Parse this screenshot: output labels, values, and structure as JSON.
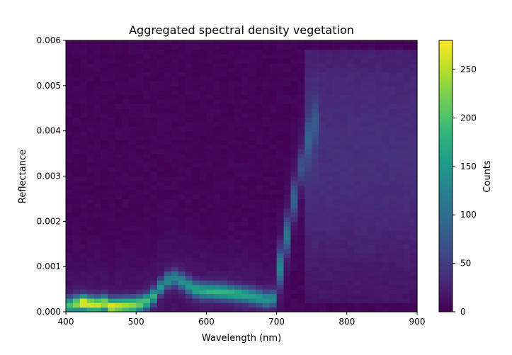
{
  "chart_data": {
    "type": "heatmap",
    "title": "Aggregated spectral density vegetation",
    "xlabel": "Wavelength (nm)",
    "ylabel": "Reflectance",
    "xlim": [
      400,
      900
    ],
    "ylim": [
      0,
      0.006
    ],
    "x_ticks": [
      400,
      500,
      600,
      700,
      800,
      900
    ],
    "y_ticks": [
      0.0,
      0.001,
      0.002,
      0.003,
      0.004,
      0.005,
      0.006
    ],
    "x_tick_labels": [
      "400",
      "500",
      "600",
      "700",
      "800",
      "900"
    ],
    "y_tick_labels": [
      "0.000",
      "0.001",
      "0.002",
      "0.003",
      "0.004",
      "0.005",
      "0.006"
    ],
    "x_bin_width_nm": 10,
    "y_bin_height": 0.0001,
    "colormap": "viridis",
    "colorbar": {
      "label": "Counts",
      "range": [
        0,
        280
      ],
      "ticks": [
        0,
        50,
        100,
        150,
        200,
        250
      ],
      "tick_labels": [
        "0",
        "50",
        "100",
        "150",
        "200",
        "250"
      ]
    },
    "ridge": {
      "wavelengths": [
        400,
        410,
        420,
        430,
        440,
        450,
        460,
        470,
        480,
        490,
        500,
        510,
        520,
        530,
        540,
        550,
        560,
        570,
        580,
        590,
        600,
        610,
        620,
        630,
        640,
        650,
        660,
        670,
        680,
        690,
        700,
        710,
        720,
        730,
        740,
        750
      ],
      "reflectance_center": [
        0.00015,
        0.00018,
        0.0002,
        0.00017,
        0.00016,
        0.00019,
        0.00012,
        0.00013,
        0.00014,
        0.00015,
        0.00018,
        0.00024,
        0.00035,
        0.00055,
        0.0007,
        0.00075,
        0.00068,
        0.00058,
        0.0005,
        0.00047,
        0.00046,
        0.00045,
        0.00044,
        0.00042,
        0.0004,
        0.00038,
        0.00035,
        0.00032,
        0.00028,
        0.0003,
        0.001,
        0.0017,
        0.0025,
        0.0032,
        0.0038,
        0.0042
      ],
      "peak_counts": [
        180,
        220,
        270,
        250,
        240,
        230,
        260,
        240,
        230,
        220,
        200,
        180,
        160,
        130,
        120,
        115,
        125,
        140,
        150,
        155,
        160,
        165,
        165,
        160,
        155,
        150,
        145,
        140,
        130,
        120,
        110,
        90,
        70,
        50,
        40,
        30
      ]
    },
    "nir_plateau": {
      "wavelength_range": [
        740,
        900
      ],
      "reflectance_range": [
        0.0002,
        0.0058
      ],
      "peak_counts": 35
    }
  }
}
